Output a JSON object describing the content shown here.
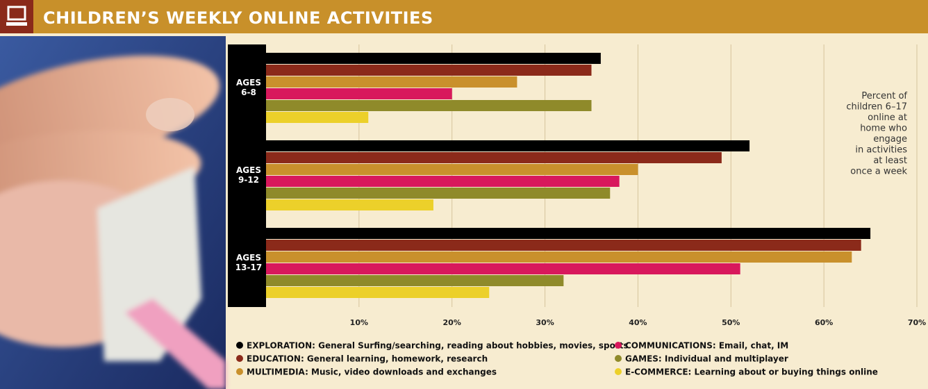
{
  "chart_data": {
    "type": "hbar-grouped",
    "title": "CHILDREN’S WEEKLY ONLINE ACTIVITIES",
    "annotation": [
      "Percent of",
      "children 6–17",
      "online at",
      "home who",
      "engage",
      "in activities",
      "at least",
      "once a week"
    ],
    "categories": [
      "AGES 6-8",
      "AGES 9-12",
      "AGES 13-17"
    ],
    "series": [
      {
        "name": "EXPLORATION: General Surfing/searching, reading about hobbies, movies, sports",
        "color": "#000000",
        "values": [
          36,
          52,
          65
        ]
      },
      {
        "name": "EDUCATION: General learning, homework, research",
        "color": "#8b2a1a",
        "values": [
          35,
          49,
          64
        ]
      },
      {
        "name": "MULTIMEDIA: Music, video downloads and exchanges",
        "color": "#c9902c",
        "values": [
          27,
          40,
          63
        ]
      },
      {
        "name": "COMMUNICATIONS: Email, chat, IM",
        "color": "#d8185c",
        "values": [
          20,
          38,
          51
        ]
      },
      {
        "name": "GAMES: Individual and multiplayer",
        "color": "#8f8a2a",
        "values": [
          35,
          37,
          32
        ]
      },
      {
        "name": "E-COMMERCE: Learning about or buying things online",
        "color": "#ecd02a",
        "values": [
          11,
          18,
          24
        ]
      }
    ],
    "xlim": [
      0,
      70
    ],
    "xticks": [
      {
        "value": 10,
        "label": "10%"
      },
      {
        "value": 20,
        "label": "20%"
      },
      {
        "value": 30,
        "label": "30%"
      },
      {
        "value": 40,
        "label": "40%"
      },
      {
        "value": 50,
        "label": "50%"
      },
      {
        "value": 60,
        "label": "60%"
      },
      {
        "value": 70,
        "label": "70%"
      }
    ],
    "grid": true
  }
}
